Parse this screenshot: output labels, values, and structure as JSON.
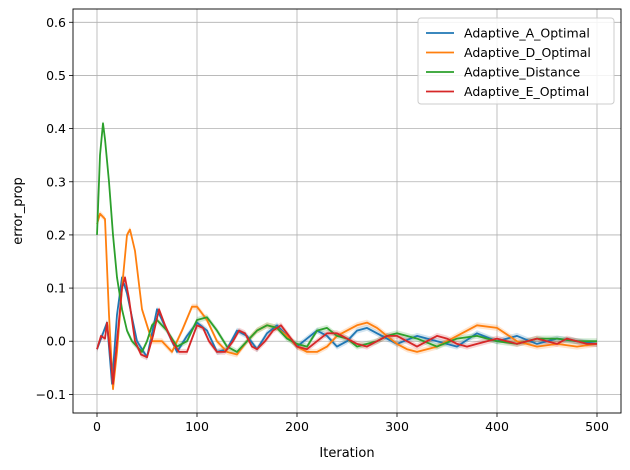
{
  "chart_data": {
    "type": "line",
    "title": "",
    "xlabel": "Iteration",
    "ylabel": "error_prop",
    "xlim": [
      -24,
      524
    ],
    "ylim": [
      -0.135,
      0.625
    ],
    "x_ticks": [
      0,
      100,
      200,
      300,
      400,
      500
    ],
    "y_ticks": [
      -0.1,
      0.0,
      0.1,
      0.2,
      0.3,
      0.4,
      0.5,
      0.6
    ],
    "x_tick_labels": [
      "0",
      "100",
      "200",
      "300",
      "400",
      "500"
    ],
    "y_tick_labels": [
      "−0.1",
      "0.0",
      "0.1",
      "0.2",
      "0.3",
      "0.4",
      "0.5",
      "0.6"
    ],
    "grid": true,
    "legend_position": "upper right",
    "series": [
      {
        "name": "Adaptive_A_Optimal",
        "color": "#1f77b4",
        "x": [
          0,
          5,
          10,
          15,
          20,
          25,
          30,
          40,
          50,
          60,
          70,
          80,
          90,
          100,
          110,
          120,
          130,
          140,
          150,
          160,
          170,
          180,
          190,
          200,
          210,
          220,
          230,
          240,
          250,
          260,
          270,
          280,
          300,
          320,
          340,
          360,
          380,
          400,
          420,
          440,
          460,
          480,
          500
        ],
        "y": [
          -0.015,
          0.01,
          0.035,
          -0.08,
          0.05,
          0.12,
          0.09,
          0.0,
          -0.03,
          0.06,
          0.02,
          -0.02,
          0.01,
          0.035,
          0.02,
          -0.02,
          -0.015,
          0.02,
          0.01,
          -0.015,
          0.015,
          0.03,
          0.01,
          -0.01,
          0.005,
          0.02,
          0.01,
          -0.01,
          0.0,
          0.02,
          0.025,
          0.015,
          -0.005,
          0.01,
          0.0,
          -0.01,
          0.015,
          0.0,
          0.01,
          -0.005,
          0.005,
          0.0,
          -0.005
        ]
      },
      {
        "name": "Adaptive_D_Optimal",
        "color": "#ff7f0e",
        "x": [
          0,
          3,
          8,
          12,
          16,
          20,
          25,
          30,
          33,
          38,
          45,
          55,
          65,
          75,
          85,
          95,
          100,
          110,
          120,
          130,
          140,
          150,
          160,
          170,
          180,
          190,
          200,
          210,
          220,
          230,
          240,
          250,
          260,
          270,
          280,
          290,
          300,
          310,
          320,
          330,
          340,
          360,
          380,
          400,
          420,
          440,
          460,
          480,
          500
        ],
        "y": [
          0.22,
          0.24,
          0.23,
          0.05,
          -0.09,
          -0.02,
          0.1,
          0.2,
          0.21,
          0.17,
          0.06,
          0.0,
          0.0,
          -0.02,
          0.02,
          0.065,
          0.065,
          0.04,
          0.0,
          -0.02,
          -0.025,
          0.0,
          0.02,
          0.03,
          0.025,
          0.01,
          -0.01,
          -0.02,
          -0.02,
          -0.01,
          0.01,
          0.02,
          0.03,
          0.035,
          0.025,
          0.01,
          -0.005,
          -0.015,
          -0.02,
          -0.015,
          -0.01,
          0.01,
          0.03,
          0.025,
          0.0,
          -0.01,
          -0.005,
          -0.01,
          -0.005
        ]
      },
      {
        "name": "Adaptive_Distance",
        "color": "#2ca02c",
        "x": [
          0,
          3,
          6,
          8,
          12,
          16,
          20,
          25,
          30,
          35,
          40,
          45,
          50,
          55,
          60,
          70,
          80,
          90,
          100,
          110,
          120,
          130,
          140,
          150,
          160,
          170,
          180,
          190,
          200,
          210,
          220,
          230,
          240,
          250,
          260,
          270,
          280,
          290,
          300,
          320,
          340,
          360,
          380,
          400,
          420,
          440,
          460,
          480,
          500
        ],
        "y": [
          0.2,
          0.35,
          0.41,
          0.38,
          0.3,
          0.2,
          0.12,
          0.06,
          0.02,
          0.0,
          -0.01,
          -0.02,
          0.0,
          0.03,
          0.04,
          0.02,
          -0.01,
          0.0,
          0.04,
          0.045,
          0.02,
          -0.01,
          -0.02,
          0.0,
          0.02,
          0.03,
          0.025,
          0.005,
          -0.005,
          -0.01,
          0.02,
          0.025,
          0.01,
          0.005,
          -0.01,
          -0.005,
          0.0,
          0.01,
          0.015,
          0.005,
          -0.01,
          0.005,
          0.01,
          0.0,
          -0.005,
          0.005,
          0.005,
          0.0,
          0.0
        ]
      },
      {
        "name": "Adaptive_E_Optimal",
        "color": "#d62728",
        "x": [
          0,
          4,
          8,
          10,
          13,
          16,
          20,
          25,
          28,
          32,
          38,
          44,
          50,
          56,
          62,
          68,
          75,
          82,
          90,
          96,
          100,
          106,
          112,
          120,
          128,
          136,
          142,
          148,
          155,
          160,
          168,
          176,
          184,
          192,
          200,
          210,
          220,
          230,
          240,
          250,
          260,
          270,
          280,
          290,
          300,
          310,
          320,
          330,
          340,
          350,
          360,
          370,
          380,
          390,
          400,
          410,
          420,
          430,
          440,
          450,
          460,
          470,
          480,
          490,
          500
        ],
        "y": [
          -0.015,
          0.01,
          0.005,
          0.035,
          -0.02,
          -0.08,
          0.0,
          0.1,
          0.12,
          0.08,
          0.0,
          -0.025,
          -0.03,
          0.01,
          0.06,
          0.03,
          0.0,
          -0.02,
          -0.02,
          0.01,
          0.03,
          0.025,
          0.0,
          -0.02,
          -0.02,
          0.0,
          0.02,
          0.015,
          -0.01,
          -0.015,
          0.0,
          0.02,
          0.03,
          0.01,
          -0.01,
          -0.015,
          0.0,
          0.015,
          0.015,
          0.005,
          -0.005,
          -0.01,
          0.0,
          0.01,
          0.01,
          0.0,
          -0.01,
          0.0,
          0.01,
          0.005,
          -0.005,
          -0.01,
          -0.005,
          0.0,
          0.005,
          0.0,
          -0.005,
          0.0,
          0.005,
          0.0,
          -0.005,
          0.005,
          0.0,
          -0.005,
          -0.005
        ]
      }
    ]
  }
}
